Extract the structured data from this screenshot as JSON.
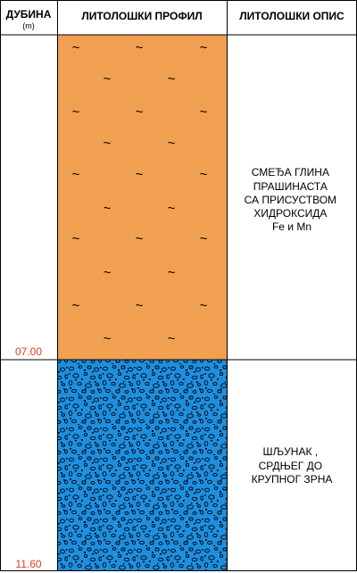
{
  "headers": {
    "depth": "ДУБИНА",
    "depth_unit": "(m)",
    "profile": "ЛИТОЛОШКИ ПРОФИЛ",
    "description": "ЛИТОЛОШКИ ОПИС"
  },
  "layers": [
    {
      "bottom_depth_label": "07.00",
      "bottom_depth": 7.0,
      "pattern": "clay-tilde",
      "description_lines": [
        "СМЕЂА ГЛИНА",
        "ПРАШИНАСТА",
        "СА ПРИСУСТВОМ",
        "ХИДРОКСИДА",
        "Fe и Mn"
      ]
    },
    {
      "bottom_depth_label": "11.60",
      "bottom_depth": 11.6,
      "pattern": "gravel",
      "description_lines": [
        "ШЉУНАК ,",
        "СРДЊЕГ ДО",
        "КРУПНОГ ЗРНА"
      ]
    }
  ],
  "colors": {
    "clay_fill": "#F0A050",
    "gravel_fill": "#1E8FE0",
    "depth_label": "#E03C20",
    "line": "#000000"
  },
  "icons": {
    "clay_symbol": "tilde",
    "gravel_symbol": "pebble"
  }
}
